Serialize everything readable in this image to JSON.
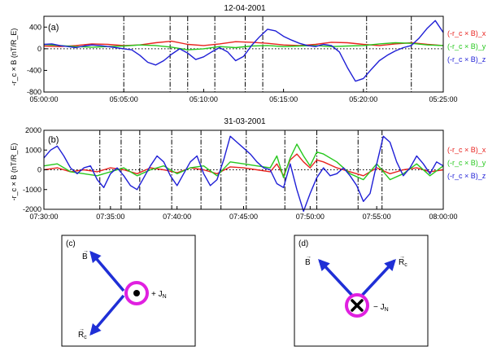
{
  "chart_data": [
    {
      "type": "line",
      "panel_label": "(a)",
      "title": "12-04-2001",
      "ylabel": "-r_c × B (nT/R_E)",
      "xlabel": "",
      "x_ticks": [
        "05:00:00",
        "05:05:00",
        "05:10:00",
        "05:15:00",
        "05:20:00",
        "05:25:00"
      ],
      "x_minutes": [
        0,
        25
      ],
      "ylim": [
        -800,
        600
      ],
      "y_ticks": [
        -800,
        -400,
        0,
        400
      ],
      "zero_line": "dotted",
      "vlines_min": [
        5.0,
        7.9,
        9.0,
        10.7,
        12.6,
        13.7,
        20.2,
        23.0
      ],
      "legend": [
        "(-r_c × B)_x",
        "(-r_c × B)_y",
        "(-r_c × B)_z"
      ],
      "legend_placement": "right",
      "series": [
        {
          "name": "(-r_c × B)_x",
          "color": "#e8231f",
          "x": [
            0,
            1,
            2,
            3,
            4,
            5,
            6,
            7,
            8,
            9,
            10,
            11,
            12,
            13,
            14,
            15,
            16,
            17,
            18,
            19,
            20,
            21,
            22,
            23,
            24,
            25
          ],
          "values": [
            50,
            40,
            60,
            90,
            80,
            60,
            70,
            110,
            140,
            80,
            60,
            90,
            130,
            120,
            100,
            70,
            60,
            80,
            120,
            110,
            80,
            60,
            90,
            110,
            80,
            60
          ]
        },
        {
          "name": "(-r_c × B)_y",
          "color": "#27c81e",
          "x": [
            0,
            1,
            2,
            3,
            4,
            5,
            6,
            7,
            8,
            9,
            10,
            11,
            12,
            13,
            14,
            15,
            16,
            17,
            18,
            19,
            20,
            21,
            22,
            23,
            24,
            25
          ],
          "values": [
            80,
            60,
            40,
            30,
            40,
            50,
            70,
            60,
            30,
            -20,
            0,
            40,
            20,
            50,
            60,
            40,
            50,
            60,
            40,
            50,
            60,
            90,
            110,
            100,
            70,
            60
          ]
        },
        {
          "name": "(-r_c × B)_z",
          "color": "#1f1fd6",
          "x": [
            0,
            0.5,
            1,
            1.5,
            2,
            2.5,
            3,
            3.5,
            4,
            4.5,
            5,
            5.5,
            6,
            6.5,
            7,
            7.5,
            8,
            8.5,
            9,
            9.5,
            10,
            10.5,
            11,
            11.5,
            12,
            12.5,
            13,
            13.5,
            14,
            14.5,
            15,
            15.5,
            16,
            16.5,
            17,
            17.5,
            18,
            18.5,
            19,
            19.5,
            20,
            20.5,
            21,
            21.5,
            22,
            22.5,
            23,
            23.5,
            24,
            24.5,
            25
          ],
          "values": [
            80,
            90,
            60,
            40,
            20,
            50,
            70,
            60,
            40,
            20,
            0,
            -20,
            -120,
            -250,
            -300,
            -220,
            -100,
            0,
            -80,
            -200,
            -150,
            -60,
            20,
            -60,
            -220,
            -140,
            60,
            220,
            360,
            330,
            230,
            160,
            100,
            60,
            40,
            80,
            60,
            -60,
            -350,
            -600,
            -550,
            -380,
            -220,
            -120,
            -40,
            20,
            60,
            200,
            380,
            520,
            300
          ]
        }
      ]
    },
    {
      "type": "line",
      "panel_label": "(b)",
      "title": "31-03-2001",
      "ylabel": "-r_c × B (nT/R_E)",
      "xlabel": "",
      "x_ticks": [
        "07:30:00",
        "07:35:00",
        "07:40:00",
        "07:45:00",
        "07:50:00",
        "07:55:00",
        "08:00:00"
      ],
      "x_minutes": [
        0,
        30
      ],
      "ylim": [
        -2000,
        2000
      ],
      "y_ticks": [
        -2000,
        -1000,
        0,
        1000,
        2000
      ],
      "zero_line": "dotted",
      "vlines_min": [
        4.2,
        5.8,
        7.2,
        9.6,
        11.8,
        13.3,
        15.2,
        18.1,
        20.5,
        23.6,
        25.4
      ],
      "legend": [
        "(-r_c × B)_x",
        "(-r_c × B)_y",
        "(-r_c × B)_z"
      ],
      "legend_placement": "right",
      "series": [
        {
          "name": "(-r_c × B)_x",
          "color": "#e8231f",
          "x": [
            0,
            1,
            2,
            3,
            4,
            5,
            6,
            7,
            8,
            9,
            10,
            11,
            12,
            13,
            14,
            15,
            16,
            17,
            17.5,
            18,
            18.5,
            19,
            19.5,
            20,
            20.5,
            21,
            22,
            23,
            24,
            25,
            26,
            27,
            28,
            29,
            30
          ],
          "values": [
            0,
            100,
            -100,
            0,
            -100,
            100,
            0,
            -200,
            100,
            0,
            -150,
            100,
            0,
            -200,
            150,
            100,
            0,
            -100,
            300,
            -300,
            500,
            800,
            400,
            100,
            500,
            400,
            100,
            -100,
            -300,
            100,
            -200,
            0,
            100,
            -100,
            0
          ]
        },
        {
          "name": "(-r_c × B)_y",
          "color": "#27c81e",
          "x": [
            0,
            1,
            2,
            3,
            4,
            5,
            6,
            7,
            8,
            9,
            10,
            11,
            12,
            13,
            14,
            15,
            16,
            17,
            17.5,
            18,
            18.5,
            19,
            19.5,
            20,
            20.5,
            21,
            22,
            23,
            24,
            25,
            26,
            27,
            28,
            29,
            30
          ],
          "values": [
            200,
            300,
            -100,
            -200,
            -300,
            -100,
            100,
            -300,
            0,
            200,
            -200,
            100,
            200,
            -300,
            400,
            300,
            200,
            100,
            700,
            -400,
            600,
            1300,
            700,
            200,
            900,
            800,
            400,
            -200,
            -500,
            300,
            -500,
            -200,
            300,
            -300,
            200
          ]
        },
        {
          "name": "(-r_c × B)_z",
          "color": "#1f1fd6",
          "x": [
            0,
            0.5,
            1,
            1.5,
            2,
            2.5,
            3,
            3.5,
            4,
            4.5,
            5,
            5.5,
            6,
            6.5,
            7,
            7.5,
            8,
            8.5,
            9,
            9.5,
            10,
            10.5,
            11,
            11.5,
            12,
            12.5,
            13,
            13.5,
            14,
            14.5,
            15,
            15.5,
            16,
            16.5,
            17,
            17.5,
            18,
            18.5,
            19,
            19.5,
            20,
            20.5,
            21,
            21.5,
            22,
            22.5,
            23,
            23.5,
            24,
            24.5,
            25,
            25.5,
            26,
            26.5,
            27,
            27.5,
            28,
            28.5,
            29,
            29.5,
            30
          ],
          "values": [
            600,
            1000,
            1200,
            700,
            100,
            -200,
            100,
            200,
            -500,
            -900,
            -200,
            100,
            -300,
            -800,
            -1000,
            -400,
            200,
            700,
            400,
            -300,
            -800,
            -200,
            400,
            700,
            -200,
            -800,
            -500,
            500,
            1700,
            1400,
            1100,
            800,
            400,
            100,
            0,
            -700,
            -900,
            300,
            -1000,
            -2100,
            -1200,
            -400,
            100,
            -300,
            -200,
            100,
            -300,
            -800,
            -1600,
            -1200,
            300,
            1700,
            1400,
            400,
            -300,
            100,
            700,
            300,
            -200,
            400,
            200
          ]
        }
      ]
    }
  ],
  "diagrams": {
    "c": {
      "panel_label": "(c)",
      "vector_top": "B",
      "vector_bottom": "R",
      "vector_bottom_sub": "c",
      "current_label": "+ J",
      "current_sub": "N",
      "center_symbol": "dot",
      "arrow_color": "#1f2fd6",
      "ring_color": "#e020e0"
    },
    "d": {
      "panel_label": "(d)",
      "vector_left": "B",
      "vector_right": "R",
      "vector_right_sub": "c",
      "current_label": "− J",
      "current_sub": "N",
      "center_symbol": "cross",
      "arrow_color": "#1f2fd6",
      "ring_color": "#e020e0"
    }
  }
}
